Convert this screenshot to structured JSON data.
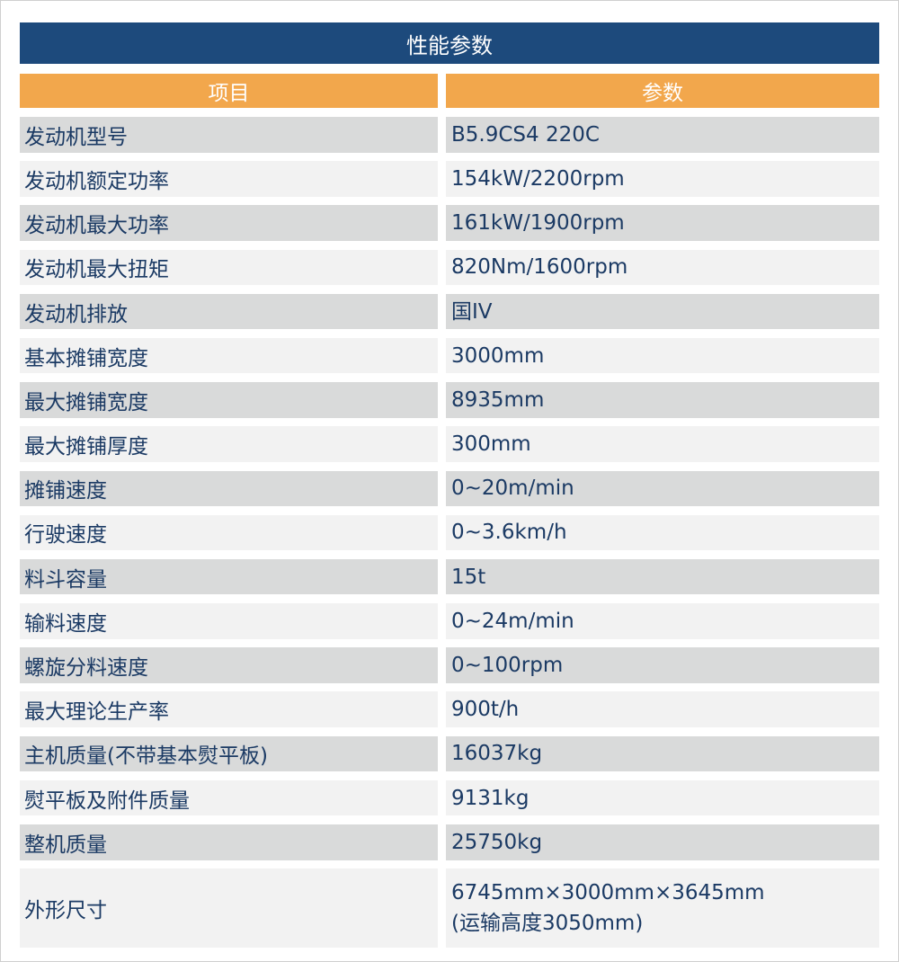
{
  "title": "性能参数",
  "headers": [
    "项目",
    "参数"
  ],
  "colors": {
    "title_bg": "#1d4a7c",
    "header_bg": "#f2a74c",
    "row_dark": "#d9dada",
    "row_light": "#f2f2f2",
    "text": "#1b3a64"
  },
  "rows": [
    {
      "label": "发动机型号",
      "value": [
        "B5.9CS4 220C"
      ]
    },
    {
      "label": "发动机额定功率",
      "value": [
        "154kW/2200rpm"
      ]
    },
    {
      "label": "发动机最大功率",
      "value": [
        "161kW/1900rpm"
      ]
    },
    {
      "label": "发动机最大扭矩",
      "value": [
        "820Nm/1600rpm"
      ]
    },
    {
      "label": "发动机排放",
      "value": [
        "国IV"
      ]
    },
    {
      "label": "基本摊铺宽度",
      "value": [
        "3000mm"
      ]
    },
    {
      "label": "最大摊铺宽度",
      "value": [
        "8935mm"
      ]
    },
    {
      "label": "最大摊铺厚度",
      "value": [
        "300mm"
      ]
    },
    {
      "label": "摊铺速度",
      "value": [
        "0~20m/min"
      ]
    },
    {
      "label": "行驶速度",
      "value": [
        "0~3.6km/h"
      ]
    },
    {
      "label": "料斗容量",
      "value": [
        "15t"
      ]
    },
    {
      "label": "输料速度",
      "value": [
        "0~24m/min"
      ]
    },
    {
      "label": "螺旋分料速度",
      "value": [
        "0~100rpm"
      ]
    },
    {
      "label": "最大理论生产率",
      "value": [
        "900t/h"
      ]
    },
    {
      "label": "主机质量(不带基本熨平板)",
      "value": [
        "16037kg"
      ]
    },
    {
      "label": "熨平板及附件质量",
      "value": [
        "9131kg"
      ]
    },
    {
      "label": "整机质量",
      "value": [
        "25750kg"
      ]
    },
    {
      "label": "外形尺寸",
      "value": [
        "6745mm×3000mm×3645mm",
        "(运输高度3050mm)"
      ]
    }
  ]
}
